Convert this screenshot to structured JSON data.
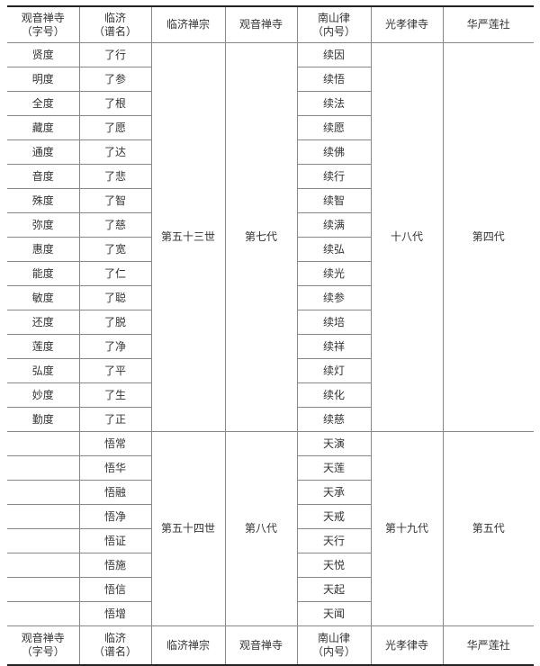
{
  "headers": {
    "col1": {
      "line1": "观音禅寺",
      "line2": "（字号）"
    },
    "col2": {
      "line1": "临济",
      "line2": "（谱名）"
    },
    "col3": "临济禅宗",
    "col4": "观音禅寺",
    "col5": {
      "line1": "南山律",
      "line2": "（内号）"
    },
    "col6": "光孝律寺",
    "col7": "华严莲社"
  },
  "groups": [
    {
      "linji_generation": "第五十三世",
      "guanyin_generation": "第七代",
      "guangxiao_generation": "十八代",
      "huayan_generation": "第四代",
      "rows": [
        {
          "zihao": "贤度",
          "puming": "了行",
          "neihao": "续因"
        },
        {
          "zihao": "明度",
          "puming": "了参",
          "neihao": "续悟"
        },
        {
          "zihao": "全度",
          "puming": "了根",
          "neihao": "续法"
        },
        {
          "zihao": "藏度",
          "puming": "了愿",
          "neihao": "续愿"
        },
        {
          "zihao": "通度",
          "puming": "了达",
          "neihao": "续佛"
        },
        {
          "zihao": "音度",
          "puming": "了悲",
          "neihao": "续行"
        },
        {
          "zihao": "殊度",
          "puming": "了智",
          "neihao": "续智"
        },
        {
          "zihao": "弥度",
          "puming": "了慈",
          "neihao": "续满"
        },
        {
          "zihao": "惠度",
          "puming": "了宽",
          "neihao": "续弘"
        },
        {
          "zihao": "能度",
          "puming": "了仁",
          "neihao": "续光"
        },
        {
          "zihao": "敏度",
          "puming": "了聪",
          "neihao": "续参"
        },
        {
          "zihao": "还度",
          "puming": "了脱",
          "neihao": "续培"
        },
        {
          "zihao": "莲度",
          "puming": "了净",
          "neihao": "续祥"
        },
        {
          "zihao": "弘度",
          "puming": "了平",
          "neihao": "续灯"
        },
        {
          "zihao": "妙度",
          "puming": "了生",
          "neihao": "续化"
        },
        {
          "zihao": "勤度",
          "puming": "了正",
          "neihao": "续慈"
        }
      ]
    },
    {
      "linji_generation": "第五十四世",
      "guanyin_generation": "第八代",
      "guangxiao_generation": "第十九代",
      "huayan_generation": "第五代",
      "rows": [
        {
          "zihao": "",
          "puming": "悟常",
          "neihao": "天演"
        },
        {
          "zihao": "",
          "puming": "悟华",
          "neihao": "天莲"
        },
        {
          "zihao": "",
          "puming": "悟融",
          "neihao": "天承"
        },
        {
          "zihao": "",
          "puming": "悟净",
          "neihao": "天戒"
        },
        {
          "zihao": "",
          "puming": "悟证",
          "neihao": "天行"
        },
        {
          "zihao": "",
          "puming": "悟施",
          "neihao": "天悦"
        },
        {
          "zihao": "",
          "puming": "悟信",
          "neihao": "天起"
        },
        {
          "zihao": "",
          "puming": "悟增",
          "neihao": "天闻"
        }
      ]
    }
  ]
}
